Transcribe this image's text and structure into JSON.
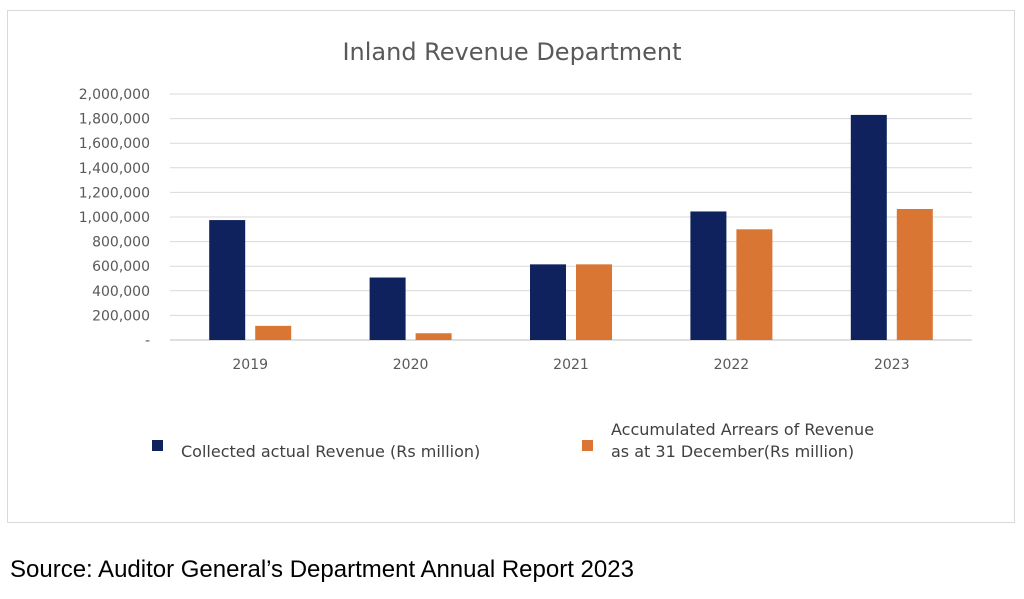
{
  "chart_data": {
    "type": "bar",
    "title": "Inland Revenue Department",
    "categories": [
      "2019",
      "2020",
      "2021",
      "2022",
      "2023"
    ],
    "series": [
      {
        "name": "Collected actual Revenue (Rs million)",
        "values": [
          975000,
          508000,
          615000,
          1045000,
          1830000
        ],
        "color": "#10225e"
      },
      {
        "name": "Accumulated Arrears of Revenue as at 31 December(Rs million)",
        "values": [
          115000,
          55000,
          615000,
          900000,
          1065000
        ],
        "color": "#d97634"
      }
    ],
    "legend_lines": [
      [
        "Collected actual Revenue (Rs million)"
      ],
      [
        "Accumulated Arrears of Revenue",
        "as at 31 December(Rs million)"
      ]
    ],
    "ylim": [
      0,
      2000000
    ],
    "y_ticks": [
      0,
      200000,
      400000,
      600000,
      800000,
      1000000,
      1200000,
      1400000,
      1600000,
      1800000,
      2000000
    ],
    "y_tick_labels": [
      "-",
      "200,000",
      "400,000",
      "600,000",
      "800,000",
      "1,000,000",
      "1,200,000",
      "1,400,000",
      "1,600,000",
      "1,800,000",
      "2,000,000"
    ],
    "grid": true,
    "legend_position": "bottom"
  },
  "source": "Source: Auditor General’s Department Annual Report 2023"
}
